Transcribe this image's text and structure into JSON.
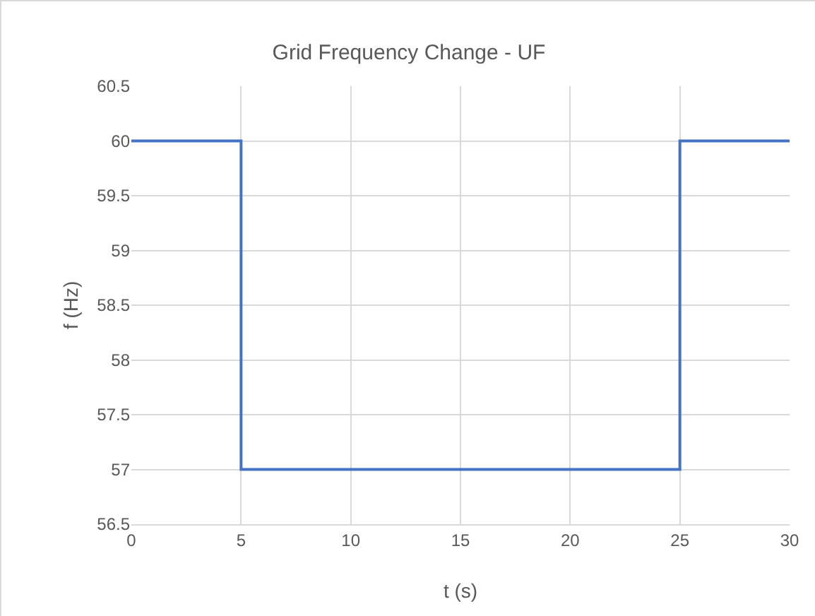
{
  "chart_data": {
    "type": "step",
    "title": "Grid Frequency Change - UF",
    "xlabel": "t (s)",
    "ylabel": "f (Hz)",
    "x": [
      0,
      5,
      25,
      30
    ],
    "series": [
      {
        "color": "#4472c4",
        "values": [
          60,
          57,
          60,
          60
        ]
      }
    ],
    "xlim": [
      0,
      30
    ],
    "xticks": [
      0,
      5,
      10,
      15,
      20,
      25,
      30
    ],
    "ylim": [
      56.5,
      60.5
    ],
    "yticks": [
      {
        "value": 56.5,
        "label": "56.5"
      },
      {
        "value": 57,
        "label": "57"
      },
      {
        "value": 57.5,
        "label": "57.5"
      },
      {
        "value": 58,
        "label": "58"
      },
      {
        "value": 58.5,
        "label": "58.5"
      },
      {
        "value": 59,
        "label": "59"
      },
      {
        "value": 59.5,
        "label": "59.5"
      },
      {
        "value": 60,
        "label": "60"
      },
      {
        "value": 60.5,
        "label": "60.5"
      }
    ],
    "grid": true,
    "line_style": "solid"
  }
}
